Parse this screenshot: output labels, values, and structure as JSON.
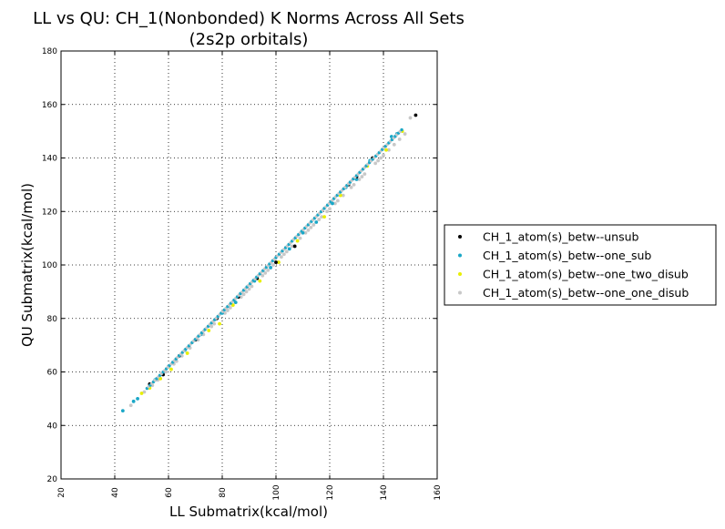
{
  "chart_data": {
    "type": "scatter",
    "title": "LL vs QU: CH_1(Nonbonded) K Norms Across All Sets",
    "subtitle": "(2s2p orbitals)",
    "xlabel": "LL Submatrix(kcal/mol)",
    "ylabel": "QU Submatrix(kcal/mol)",
    "xlim": [
      20,
      160
    ],
    "ylim": [
      20,
      180
    ],
    "xticks": [
      "20",
      "40",
      "60",
      "80",
      "100",
      "120",
      "140",
      "160"
    ],
    "yticks": [
      "20",
      "40",
      "60",
      "80",
      "100",
      "120",
      "140",
      "160",
      "180"
    ],
    "grid": true,
    "legend_position": "right",
    "series": [
      {
        "name": "CH_1_atom(s)_betw--unsub",
        "color": "#000000",
        "points": [
          [
            152,
            156
          ],
          [
            136,
            140
          ],
          [
            130,
            133
          ],
          [
            127,
            130
          ],
          [
            107,
            107
          ],
          [
            100,
            101
          ],
          [
            93,
            95
          ],
          [
            86,
            88
          ],
          [
            78,
            80
          ],
          [
            70,
            72
          ],
          [
            64,
            66
          ],
          [
            58,
            59
          ],
          [
            53,
            55.5
          ]
        ]
      },
      {
        "name": "CH_1_atom(s)_betw--one_sub",
        "color": "#1aa7c7",
        "points": [
          [
            43,
            45.5
          ],
          [
            47,
            49
          ],
          [
            48.5,
            50
          ],
          [
            55,
            57
          ],
          [
            60,
            62
          ],
          [
            66,
            68
          ],
          [
            72,
            74
          ],
          [
            80,
            82
          ],
          [
            85,
            86
          ],
          [
            92,
            94
          ],
          [
            98,
            99
          ],
          [
            105,
            106
          ],
          [
            110,
            112
          ],
          [
            115,
            116
          ],
          [
            121,
            123
          ],
          [
            126,
            129
          ],
          [
            130,
            132
          ],
          [
            135,
            139
          ],
          [
            143,
            148
          ],
          [
            145,
            149
          ]
        ]
      },
      {
        "name": "CH_1_atom(s)_betw--one_two_disub",
        "color": "#e8ef00",
        "points": [
          [
            50,
            52
          ],
          [
            53,
            54
          ],
          [
            57,
            57.5
          ],
          [
            61,
            61
          ],
          [
            67,
            67
          ],
          [
            75,
            75.5
          ],
          [
            79,
            78
          ],
          [
            84,
            85
          ],
          [
            94,
            94
          ],
          [
            101,
            101
          ],
          [
            108,
            109
          ],
          [
            118,
            118
          ],
          [
            124,
            126
          ],
          [
            134,
            137
          ],
          [
            141,
            143
          ],
          [
            147,
            150
          ]
        ]
      },
      {
        "name": "CH_1_atom(s)_betw--one_one_disub",
        "color": "#c8c8c8",
        "points": [
          [
            46,
            47.5
          ],
          [
            51,
            52.5
          ],
          [
            54,
            55
          ],
          [
            56,
            57
          ],
          [
            59,
            60
          ],
          [
            62,
            63
          ],
          [
            63,
            64
          ],
          [
            65,
            66
          ],
          [
            68,
            69
          ],
          [
            71,
            72
          ],
          [
            73,
            74
          ],
          [
            76,
            77
          ],
          [
            77,
            78
          ],
          [
            81,
            82
          ],
          [
            82,
            83
          ],
          [
            83,
            84
          ],
          [
            87,
            88
          ],
          [
            88,
            89
          ],
          [
            89,
            90
          ],
          [
            90,
            91
          ],
          [
            91,
            92
          ],
          [
            95,
            96
          ],
          [
            96,
            97
          ],
          [
            97,
            98
          ],
          [
            99,
            100
          ],
          [
            102,
            103
          ],
          [
            103,
            104
          ],
          [
            104,
            105
          ],
          [
            106,
            107
          ],
          [
            109,
            110
          ],
          [
            111,
            112
          ],
          [
            112,
            113
          ],
          [
            113,
            114
          ],
          [
            114,
            115
          ],
          [
            116,
            117
          ],
          [
            117,
            118
          ],
          [
            119,
            120
          ],
          [
            120,
            121
          ],
          [
            122,
            123
          ],
          [
            123,
            124
          ],
          [
            125,
            126
          ],
          [
            128,
            129
          ],
          [
            129,
            130
          ],
          [
            131,
            132
          ],
          [
            132,
            133
          ],
          [
            133,
            134
          ],
          [
            137,
            138
          ],
          [
            138,
            139
          ],
          [
            139,
            140
          ],
          [
            140,
            141
          ],
          [
            142,
            143
          ],
          [
            144,
            145
          ],
          [
            146,
            147
          ],
          [
            148,
            149
          ],
          [
            150,
            155
          ]
        ]
      }
    ]
  }
}
